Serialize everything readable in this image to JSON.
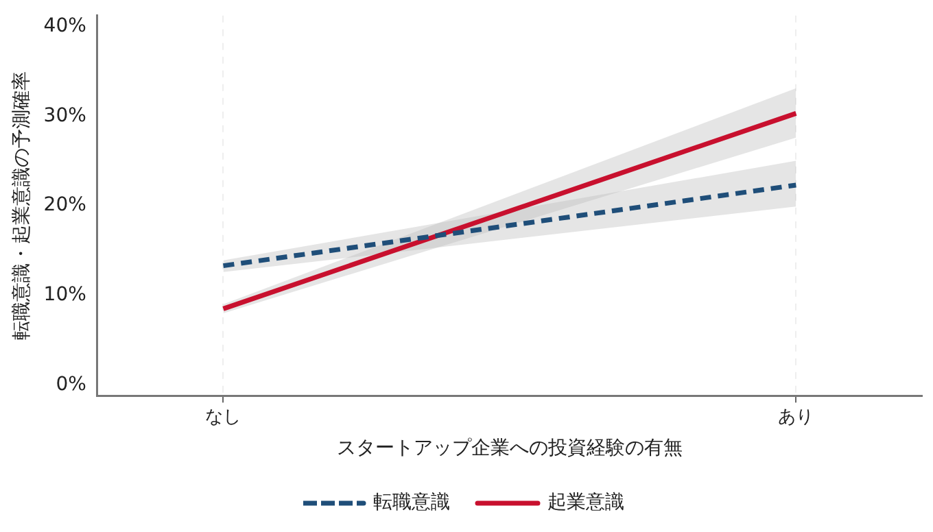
{
  "chart_data": {
    "type": "line",
    "xlabel": "スタートアップ企業への投資経験の有無",
    "ylabel": "転職意識・起業意識の予測確率",
    "categories": [
      "なし",
      "あり"
    ],
    "series": [
      {
        "name": "転職意識",
        "color": "#1f4e79",
        "values": [
          13.3,
          22.3
        ],
        "lower": [
          12.6,
          19.9
        ],
        "upper": [
          13.9,
          25.0
        ],
        "line_style": "dashed"
      },
      {
        "name": "起業意識",
        "color": "#c8102e",
        "values": [
          8.5,
          30.3
        ],
        "lower": [
          8.0,
          27.6
        ],
        "upper": [
          9.0,
          33.1
        ],
        "line_style": "solid"
      }
    ],
    "ylim": [
      -1.2,
      41.2
    ],
    "yticks": [
      {
        "value": 0,
        "label": "0%"
      },
      {
        "value": 10,
        "label": "10%"
      },
      {
        "value": 20,
        "label": "20%"
      },
      {
        "value": 30,
        "label": "30%"
      },
      {
        "value": 40,
        "label": "40%"
      }
    ],
    "grid": "x",
    "legend": "bottom",
    "marker": "none"
  }
}
